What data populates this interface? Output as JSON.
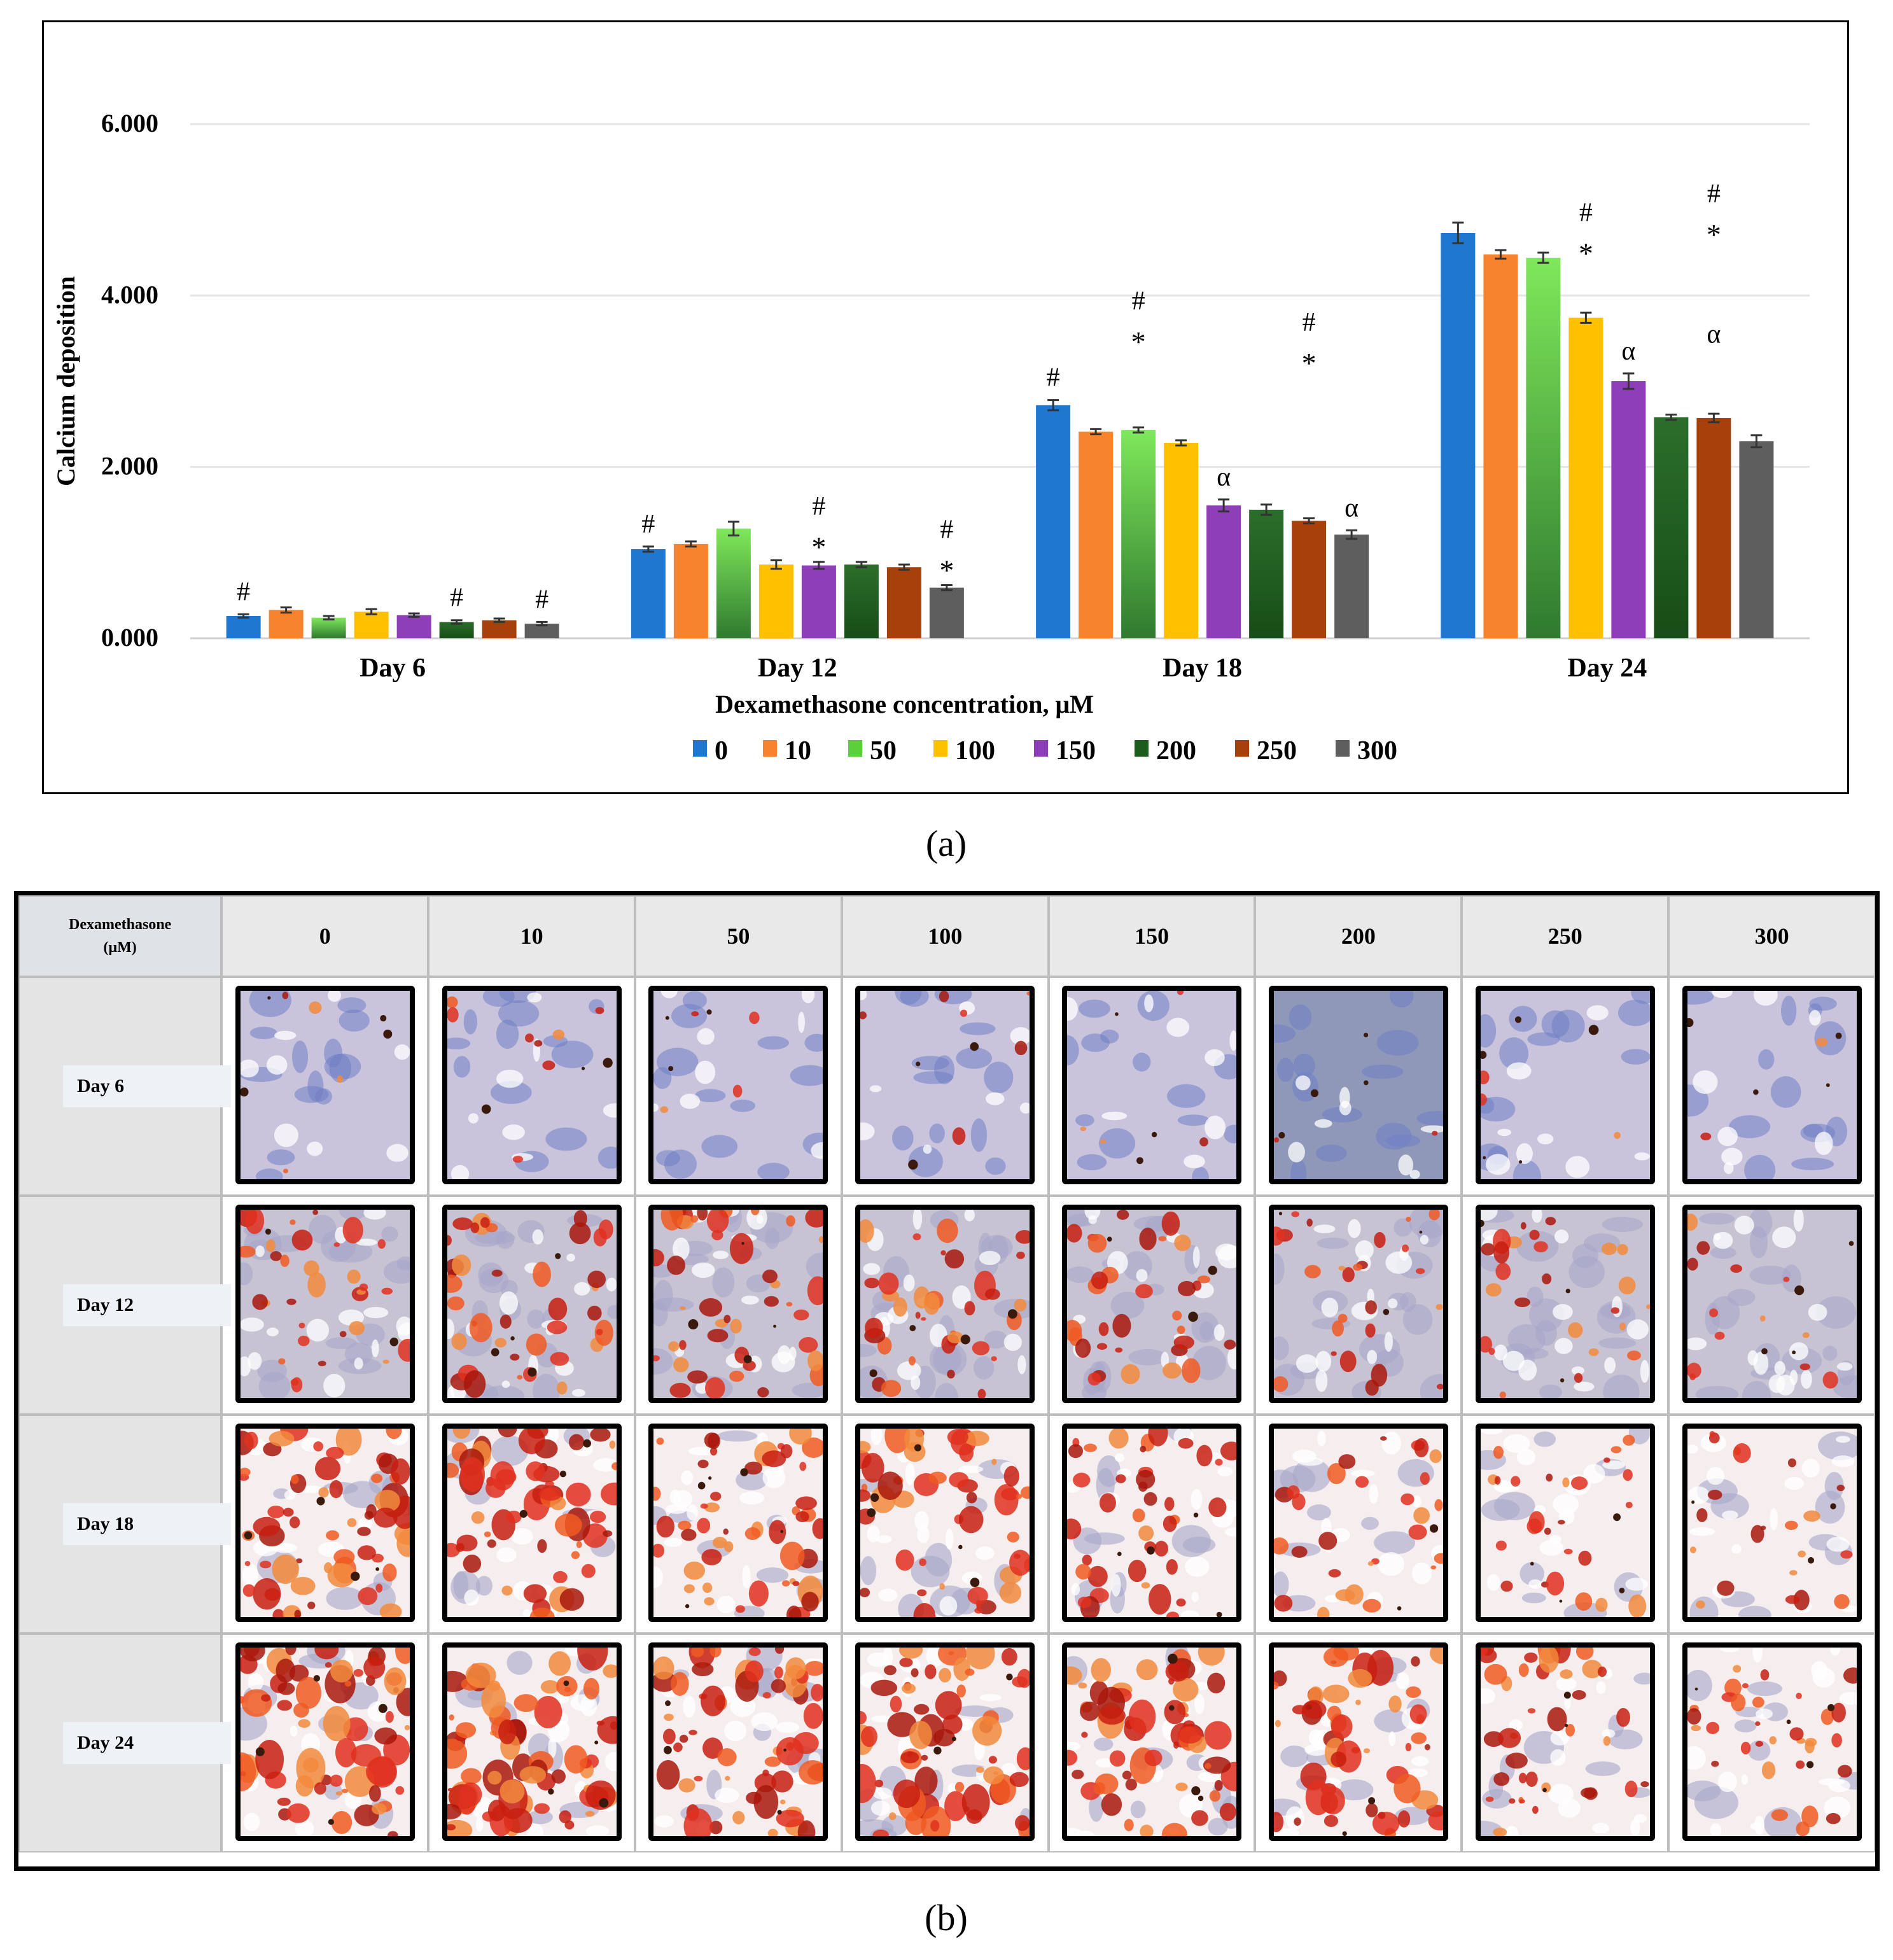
{
  "panel_labels": {
    "a": "(a)",
    "b": "(b)"
  },
  "colors": {
    "series": [
      "#1f77d0",
      "#f7832e",
      "#5ad13a",
      "#ffc000",
      "#8e3fb7",
      "#1c5c1c",
      "#a8400c",
      "#5e5e5e"
    ],
    "grid": "#e5e5e5"
  },
  "chart_data": {
    "type": "bar",
    "title": "",
    "xlabel": "Dexamethasone concentration, μM",
    "ylabel": "Calcium deposition",
    "ylim": [
      0,
      6
    ],
    "yticks": [
      "0.000",
      "2.000",
      "4.000",
      "6.000"
    ],
    "ytick_values": [
      0,
      2,
      4,
      6
    ],
    "categories": [
      "Day 6",
      "Day 12",
      "Day 18",
      "Day 24"
    ],
    "series": [
      {
        "name": "0",
        "values": [
          0.26,
          1.04,
          2.72,
          4.73
        ],
        "errors": [
          0.02,
          0.03,
          0.06,
          0.12
        ]
      },
      {
        "name": "10",
        "values": [
          0.33,
          1.1,
          2.41,
          4.48
        ],
        "errors": [
          0.03,
          0.03,
          0.03,
          0.05
        ]
      },
      {
        "name": "50",
        "values": [
          0.24,
          1.28,
          2.43,
          4.44
        ],
        "errors": [
          0.02,
          0.08,
          0.03,
          0.06
        ]
      },
      {
        "name": "100",
        "values": [
          0.31,
          0.86,
          2.28,
          3.74
        ],
        "errors": [
          0.03,
          0.05,
          0.03,
          0.06
        ]
      },
      {
        "name": "150",
        "values": [
          0.27,
          0.85,
          1.55,
          3.0
        ],
        "errors": [
          0.02,
          0.04,
          0.07,
          0.09
        ]
      },
      {
        "name": "200",
        "values": [
          0.19,
          0.86,
          1.5,
          2.58
        ],
        "errors": [
          0.02,
          0.03,
          0.06,
          0.03
        ]
      },
      {
        "name": "250",
        "values": [
          0.21,
          0.83,
          1.37,
          2.57
        ],
        "errors": [
          0.02,
          0.03,
          0.03,
          0.05
        ]
      },
      {
        "name": "300",
        "values": [
          0.17,
          0.59,
          1.21,
          2.3
        ],
        "errors": [
          0.02,
          0.03,
          0.05,
          0.07
        ]
      }
    ],
    "annotations": [
      {
        "category": 0,
        "series": 0,
        "text": [
          "#"
        ]
      },
      {
        "category": 0,
        "series": 5,
        "text": [
          "#"
        ]
      },
      {
        "category": 0,
        "series": 7,
        "text": [
          "#"
        ]
      },
      {
        "category": 1,
        "series": 0,
        "text": [
          "#"
        ]
      },
      {
        "category": 1,
        "series": 4,
        "text": [
          "#",
          "*"
        ]
      },
      {
        "category": 1,
        "series": 7,
        "text": [
          "#",
          "*"
        ]
      },
      {
        "category": 2,
        "series": 0,
        "text": [
          "#"
        ]
      },
      {
        "category": 2,
        "series": 2,
        "text": [
          "#",
          "*"
        ]
      },
      {
        "category": 2,
        "series": 4,
        "text": [
          "α"
        ]
      },
      {
        "category": 2,
        "series": 6,
        "text": [
          "#",
          "*"
        ]
      },
      {
        "category": 2,
        "series": 7,
        "text": [
          "α"
        ]
      },
      {
        "category": 3,
        "series": 3,
        "text": [
          "#",
          "*"
        ]
      },
      {
        "category": 3,
        "series": 4,
        "text": [
          "α"
        ]
      },
      {
        "category": 3,
        "series": 6,
        "text": [
          "#",
          "*"
        ]
      },
      {
        "category": 3,
        "series": 6,
        "text": [
          "α"
        ]
      }
    ],
    "legend_position": "bottom"
  },
  "stain_grid": {
    "corner_label": [
      "Dexamethasone",
      "(μM)"
    ],
    "columns": [
      "0",
      "10",
      "50",
      "100",
      "150",
      "200",
      "250",
      "300"
    ],
    "rows": [
      "Day 6",
      "Day 12",
      "Day 18",
      "Day 24"
    ],
    "stain_level": [
      [
        0.05,
        0.12,
        0.06,
        0.08,
        0.05,
        0.03,
        0.04,
        0.03
      ],
      [
        0.45,
        0.55,
        0.6,
        0.5,
        0.45,
        0.35,
        0.35,
        0.18
      ],
      [
        0.85,
        0.82,
        0.7,
        0.68,
        0.55,
        0.4,
        0.35,
        0.3
      ],
      [
        0.95,
        0.97,
        0.85,
        0.88,
        0.8,
        0.75,
        0.55,
        0.45
      ]
    ]
  }
}
